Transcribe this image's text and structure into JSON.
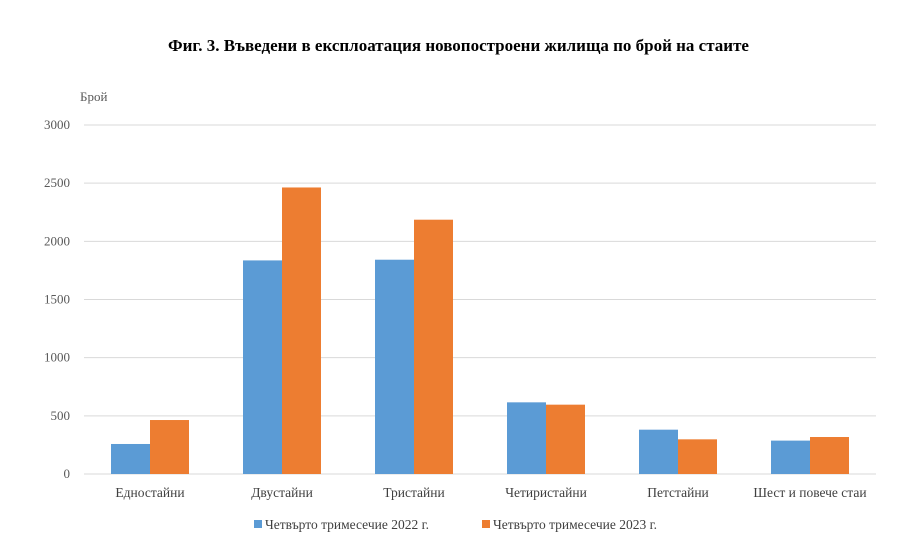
{
  "chart_data": {
    "type": "bar",
    "title": "Фиг. 3. Въведени в експлоатация новопостроени жилища по брой на стаите",
    "ylabel": "Брой",
    "xlabel": "",
    "ylim": [
      0,
      3000
    ],
    "yticks": [
      0,
      500,
      1000,
      1500,
      2000,
      2500,
      3000
    ],
    "grid": true,
    "legend_position": "bottom",
    "categories": [
      "Едностайни",
      "Двустайни",
      "Тристайни",
      "Четиристайни",
      "Петстайни",
      "Шест и повече стаи"
    ],
    "series": [
      {
        "name": "Четвърто тримесечие 2022 г.",
        "color": "#5B9BD5",
        "values": [
          258,
          1836,
          1842,
          616,
          381,
          287
        ]
      },
      {
        "name": "Четвърто тримесечие 2023 г.",
        "color": "#ED7D31",
        "values": [
          464,
          2463,
          2186,
          596,
          298,
          318
        ]
      }
    ]
  }
}
